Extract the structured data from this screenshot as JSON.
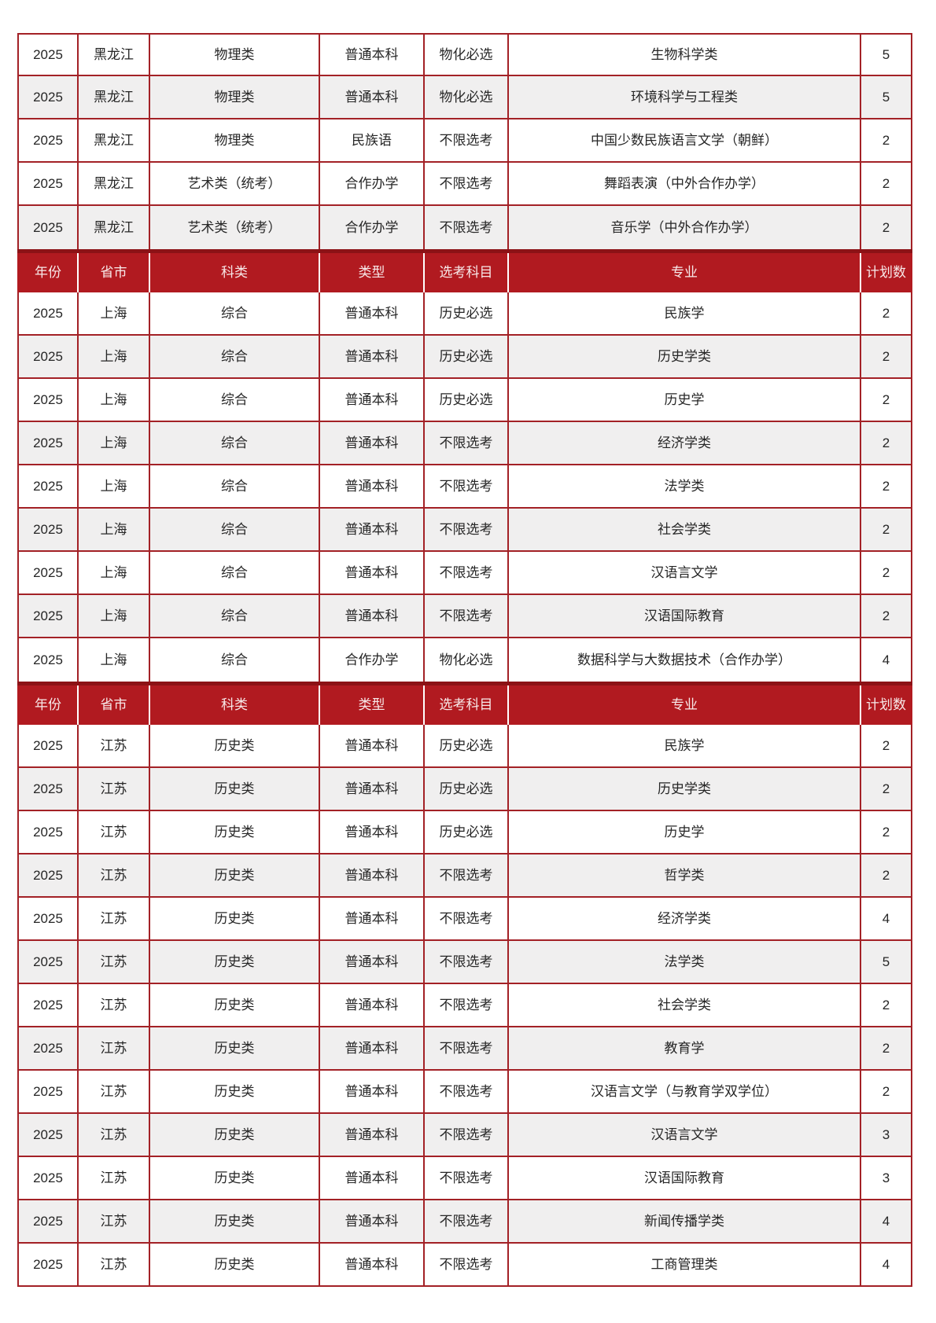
{
  "theme": {
    "header_bg": "#B11A20",
    "header_top_border": "#8C1216",
    "header_text": "#F8E9E9",
    "cell_border": "#A32126",
    "row_alt_bg": "#F0EFEF",
    "text_color": "#262626"
  },
  "table": {
    "columns": [
      "年份",
      "省市",
      "科类",
      "类型",
      "选考科目",
      "专业",
      "计划数"
    ],
    "sections": [
      {
        "show_header": false,
        "rows": [
          {
            "cells": [
              "2025",
              "黑龙江",
              "物理类",
              "普通本科",
              "物化必选",
              "生物科学类",
              "5"
            ],
            "shaded": false
          },
          {
            "cells": [
              "2025",
              "黑龙江",
              "物理类",
              "普通本科",
              "物化必选",
              "环境科学与工程类",
              "5"
            ],
            "shaded": true
          },
          {
            "cells": [
              "2025",
              "黑龙江",
              "物理类",
              "民族语",
              "不限选考",
              "中国少数民族语言文学（朝鲜）",
              "2"
            ],
            "shaded": false
          },
          {
            "cells": [
              "2025",
              "黑龙江",
              "艺术类（统考）",
              "合作办学",
              "不限选考",
              "舞蹈表演（中外合作办学）",
              "2"
            ],
            "shaded": false
          },
          {
            "cells": [
              "2025",
              "黑龙江",
              "艺术类（统考）",
              "合作办学",
              "不限选考",
              "音乐学（中外合作办学）",
              "2"
            ],
            "shaded": true
          }
        ]
      },
      {
        "show_header": true,
        "rows": [
          {
            "cells": [
              "2025",
              "上海",
              "综合",
              "普通本科",
              "历史必选",
              "民族学",
              "2"
            ],
            "shaded": false
          },
          {
            "cells": [
              "2025",
              "上海",
              "综合",
              "普通本科",
              "历史必选",
              "历史学类",
              "2"
            ],
            "shaded": true
          },
          {
            "cells": [
              "2025",
              "上海",
              "综合",
              "普通本科",
              "历史必选",
              "历史学",
              "2"
            ],
            "shaded": false
          },
          {
            "cells": [
              "2025",
              "上海",
              "综合",
              "普通本科",
              "不限选考",
              "经济学类",
              "2"
            ],
            "shaded": true
          },
          {
            "cells": [
              "2025",
              "上海",
              "综合",
              "普通本科",
              "不限选考",
              "法学类",
              "2"
            ],
            "shaded": false
          },
          {
            "cells": [
              "2025",
              "上海",
              "综合",
              "普通本科",
              "不限选考",
              "社会学类",
              "2"
            ],
            "shaded": true
          },
          {
            "cells": [
              "2025",
              "上海",
              "综合",
              "普通本科",
              "不限选考",
              "汉语言文学",
              "2"
            ],
            "shaded": false
          },
          {
            "cells": [
              "2025",
              "上海",
              "综合",
              "普通本科",
              "不限选考",
              "汉语国际教育",
              "2"
            ],
            "shaded": true
          },
          {
            "cells": [
              "2025",
              "上海",
              "综合",
              "合作办学",
              "物化必选",
              "数据科学与大数据技术（合作办学）",
              "4"
            ],
            "shaded": false
          }
        ]
      },
      {
        "show_header": true,
        "rows": [
          {
            "cells": [
              "2025",
              "江苏",
              "历史类",
              "普通本科",
              "历史必选",
              "民族学",
              "2"
            ],
            "shaded": false
          },
          {
            "cells": [
              "2025",
              "江苏",
              "历史类",
              "普通本科",
              "历史必选",
              "历史学类",
              "2"
            ],
            "shaded": true
          },
          {
            "cells": [
              "2025",
              "江苏",
              "历史类",
              "普通本科",
              "历史必选",
              "历史学",
              "2"
            ],
            "shaded": false
          },
          {
            "cells": [
              "2025",
              "江苏",
              "历史类",
              "普通本科",
              "不限选考",
              "哲学类",
              "2"
            ],
            "shaded": true
          },
          {
            "cells": [
              "2025",
              "江苏",
              "历史类",
              "普通本科",
              "不限选考",
              "经济学类",
              "4"
            ],
            "shaded": false
          },
          {
            "cells": [
              "2025",
              "江苏",
              "历史类",
              "普通本科",
              "不限选考",
              "法学类",
              "5"
            ],
            "shaded": true
          },
          {
            "cells": [
              "2025",
              "江苏",
              "历史类",
              "普通本科",
              "不限选考",
              "社会学类",
              "2"
            ],
            "shaded": false
          },
          {
            "cells": [
              "2025",
              "江苏",
              "历史类",
              "普通本科",
              "不限选考",
              "教育学",
              "2"
            ],
            "shaded": true
          },
          {
            "cells": [
              "2025",
              "江苏",
              "历史类",
              "普通本科",
              "不限选考",
              "汉语言文学（与教育学双学位）",
              "2"
            ],
            "shaded": false
          },
          {
            "cells": [
              "2025",
              "江苏",
              "历史类",
              "普通本科",
              "不限选考",
              "汉语言文学",
              "3"
            ],
            "shaded": true
          },
          {
            "cells": [
              "2025",
              "江苏",
              "历史类",
              "普通本科",
              "不限选考",
              "汉语国际教育",
              "3"
            ],
            "shaded": false
          },
          {
            "cells": [
              "2025",
              "江苏",
              "历史类",
              "普通本科",
              "不限选考",
              "新闻传播学类",
              "4"
            ],
            "shaded": true
          },
          {
            "cells": [
              "2025",
              "江苏",
              "历史类",
              "普通本科",
              "不限选考",
              "工商管理类",
              "4"
            ],
            "shaded": false
          }
        ]
      }
    ]
  }
}
